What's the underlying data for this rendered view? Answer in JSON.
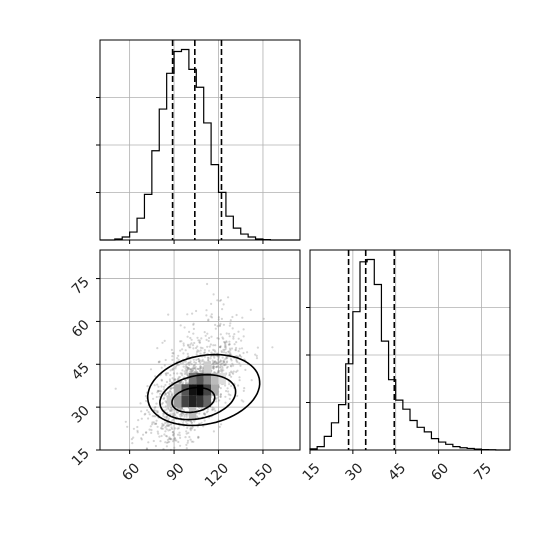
{
  "chart_data": {
    "type": "corner",
    "grid": true,
    "parameters": [
      {
        "range": [
          40,
          175
        ],
        "ticks": [
          60,
          90,
          120,
          150
        ]
      },
      {
        "range": [
          15,
          85
        ],
        "ticks": [
          15,
          30,
          45,
          60,
          75
        ]
      }
    ],
    "hist_x": {
      "type": "histogram",
      "bins": [
        40,
        45,
        50,
        55,
        60,
        65,
        70,
        75,
        80,
        85,
        90,
        95,
        100,
        105,
        110,
        115,
        120,
        125,
        130,
        135,
        140,
        145,
        150,
        155,
        160,
        165,
        170,
        175
      ],
      "counts": [
        0.0,
        0.0,
        0.5,
        1.5,
        4.0,
        11.0,
        23.0,
        45.0,
        66.0,
        84.0,
        95.0,
        96.0,
        86.0,
        77.0,
        59.0,
        38.0,
        24.0,
        12.0,
        6.0,
        3.0,
        1.5,
        0.5,
        0.2,
        0.0,
        0.0,
        0.0,
        0.0
      ],
      "quantiles": [
        89,
        104,
        122
      ]
    },
    "hist_y": {
      "type": "histogram",
      "bins": [
        15,
        17.5,
        20,
        22.5,
        25,
        27.5,
        30,
        32.5,
        35,
        37.5,
        40,
        42.5,
        45,
        47.5,
        50,
        52.5,
        55,
        57.5,
        60,
        62.5,
        65,
        67.5,
        70,
        72.5,
        75,
        77.5,
        80,
        82.5,
        85
      ],
      "counts": [
        0.5,
        1.5,
        6,
        12,
        20,
        38,
        61,
        83,
        84,
        73,
        48,
        31,
        22,
        18,
        13,
        10,
        8,
        5,
        3.5,
        2.5,
        1.5,
        1,
        0.7,
        0.4,
        0.2,
        0.1,
        0,
        0
      ],
      "quantiles": [
        28.5,
        34.5,
        44.5
      ]
    },
    "scatter_2d": {
      "type": "scatter",
      "x_mean": 104,
      "y_mean": 36,
      "x_sd": 16,
      "y_sd": 9,
      "correlation": 0.6,
      "contour_levels": 3
    }
  }
}
